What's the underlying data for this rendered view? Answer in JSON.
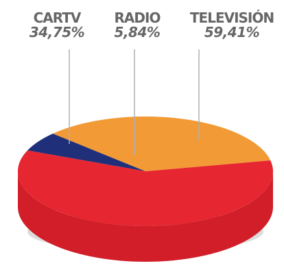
{
  "chart_data": {
    "type": "pie",
    "style": "3d",
    "slices": [
      {
        "label": "CARTV",
        "value_label": "34,75%",
        "value": 34.75,
        "color": "#f29a35",
        "side_color": "#e08a2c"
      },
      {
        "label": "RADIO",
        "value_label": "5,84%",
        "value": 5.84,
        "color": "#1f2f7a",
        "side_color": "#1a2a6e"
      },
      {
        "label": "TELEVISIÓN",
        "value_label": "59,41%",
        "value": 59.41,
        "color": "#e62630",
        "side_color": "#d11e28"
      }
    ],
    "leader_color": "#b0b0b0"
  }
}
